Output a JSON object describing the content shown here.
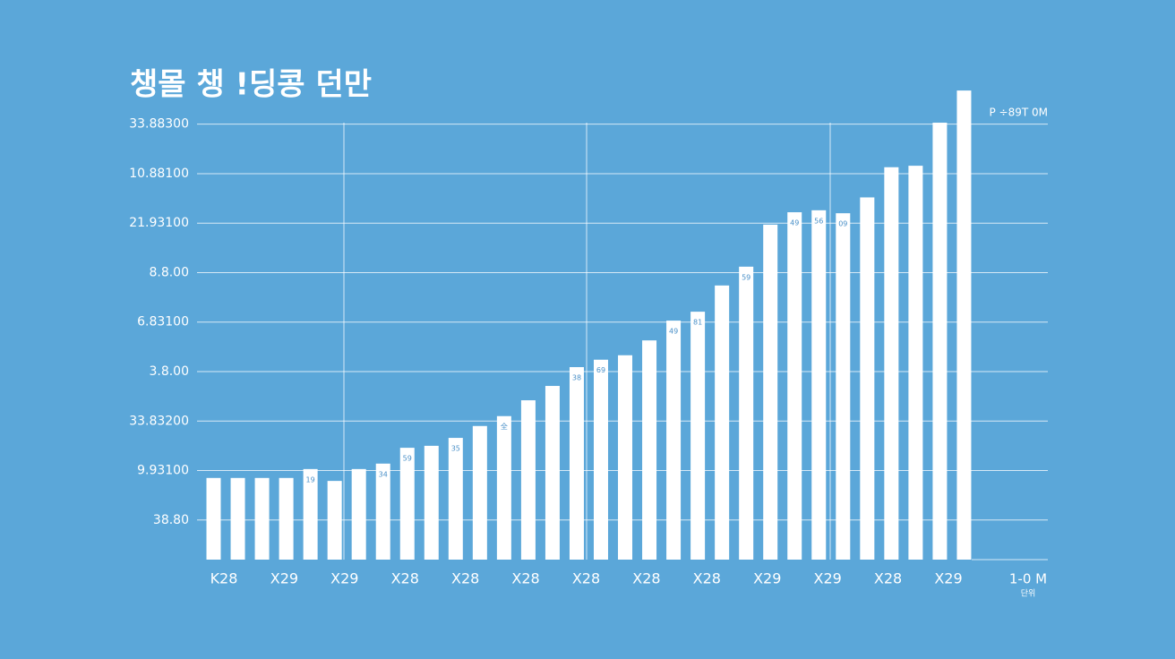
{
  "chart_data": {
    "type": "bar",
    "title": "챙몰 챙 !딩콩 던만",
    "corner_label": "P ÷89T 0M",
    "axis_note": "1-0 M",
    "axis_note_sub": "단위",
    "color": "#ffffff",
    "grid": true,
    "ylim": [
      0.2,
      9.7
    ],
    "yticks": [
      {
        "value": 1,
        "label": "38.80"
      },
      {
        "value": 2,
        "label": "9.93100"
      },
      {
        "value": 3,
        "label": "33.83200"
      },
      {
        "value": 4,
        "label": "3.8.00"
      },
      {
        "value": 5,
        "label": "6.83100"
      },
      {
        "value": 6,
        "label": "8.8.00"
      },
      {
        "value": 7,
        "label": "21.93100"
      },
      {
        "value": 8,
        "label": "10.88100"
      },
      {
        "value": 9,
        "label": "33.88300"
      }
    ],
    "x_tick_labels": [
      "K28",
      "X29",
      "X29",
      "X28",
      "X28",
      "X28",
      "X28",
      "X28",
      "X28",
      "X29",
      "X29",
      "X28",
      "X29"
    ],
    "values": [
      1.85,
      1.85,
      1.85,
      1.85,
      2.03,
      1.79,
      2.03,
      2.14,
      2.46,
      2.5,
      2.66,
      2.9,
      3.1,
      3.42,
      3.71,
      4.09,
      4.24,
      4.33,
      4.63,
      5.03,
      5.21,
      5.74,
      6.12,
      6.97,
      7.22,
      7.26,
      7.2,
      7.52,
      8.13,
      8.16,
      9.03,
      9.68
    ],
    "bar_labels": [
      null,
      null,
      null,
      null,
      "19",
      null,
      null,
      "34",
      "59",
      null,
      "35",
      null,
      "全",
      null,
      null,
      "38",
      "69",
      null,
      null,
      "49",
      "81",
      null,
      "59",
      null,
      "49",
      "56",
      "09",
      null,
      null,
      null,
      null,
      null
    ]
  }
}
